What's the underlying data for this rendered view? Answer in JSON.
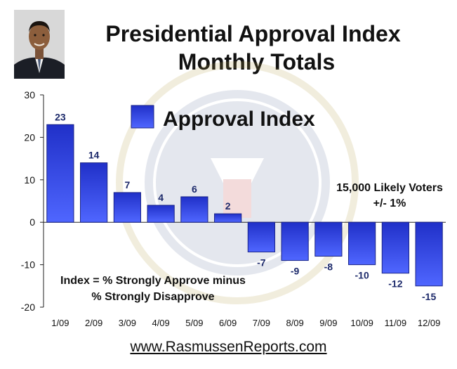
{
  "header": {
    "title": "Presidential Approval Index",
    "subtitle": "Monthly Totals"
  },
  "chart_data": {
    "type": "bar",
    "categories": [
      "1/09",
      "2/09",
      "3/09",
      "4/09",
      "5/09",
      "6/09",
      "7/09",
      "8/09",
      "9/09",
      "10/09",
      "11/09",
      "12/09"
    ],
    "series": [
      {
        "name": "Approval Index",
        "values": [
          23,
          14,
          7,
          4,
          6,
          2,
          -7,
          -9,
          -8,
          -10,
          -12,
          -15
        ]
      }
    ],
    "ylim": [
      -20,
      30
    ],
    "yticks": [
      30,
      20,
      10,
      0,
      -10,
      -20
    ],
    "legend": "top-center",
    "grid": false,
    "bar_color": "#2b3bd6",
    "annotations": {
      "voters_line1": "15,000 Likely Voters",
      "voters_line2": "+/- 1%",
      "index_line1": "Index = % Strongly Approve minus",
      "index_line2": "% Strongly Disapprove"
    }
  },
  "footer": {
    "url": "www.RasmussenReports.com"
  }
}
